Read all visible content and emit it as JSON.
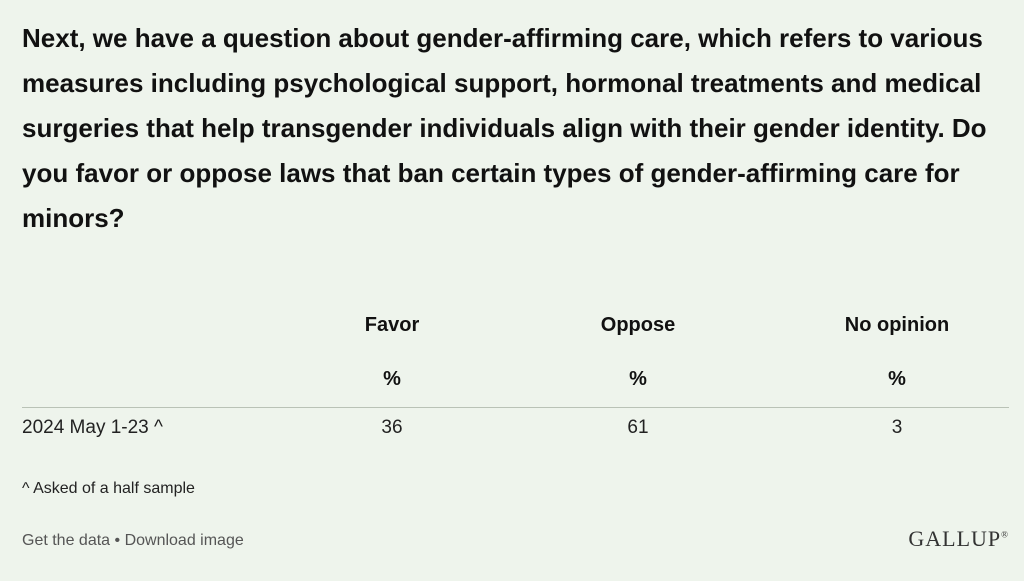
{
  "chart_data": {
    "type": "table",
    "title": "Next, we have a question about gender-affirming care, which refers to various measures including psychological support, hormonal treatments and medical surgeries that help transgender individuals align with their gender identity. Do you favor or oppose laws that ban certain types of gender-affirming care for minors?",
    "columns": [
      "Favor",
      "Oppose",
      "No opinion"
    ],
    "units": [
      "%",
      "%",
      "%"
    ],
    "rows": [
      {
        "label": "2024 May 1-23 ^",
        "values": [
          36,
          61,
          3
        ]
      }
    ],
    "footnote": "^ Asked of a half sample"
  },
  "footer": {
    "get_data": "Get the data",
    "separator": " • ",
    "download": "Download image",
    "logo": "GALLUP",
    "logo_mark": "®"
  }
}
